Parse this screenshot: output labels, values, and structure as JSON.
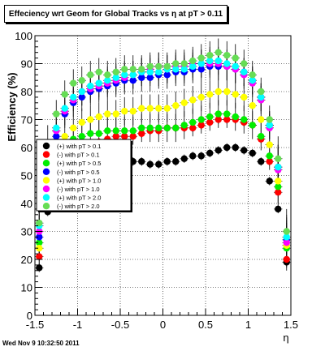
{
  "title": "Effeciency wrt Geom for Global Tracks vs    η at pT > 0.11",
  "footer": "Wed Nov  9 10:32:50 2011",
  "chart_data": {
    "type": "scatter",
    "title": "Effeciency wrt Geom for Global Tracks vs    η at pT > 0.11",
    "xlabel": "η",
    "ylabel": "Efficiency (%)",
    "xlim": [
      -1.5,
      1.5
    ],
    "ylim": [
      0,
      100
    ],
    "x_ticks": [
      "-1.5",
      "-1",
      "-0.5",
      "0",
      "0.5",
      "1",
      "1.5"
    ],
    "y_ticks": [
      "0",
      "10",
      "20",
      "30",
      "40",
      "50",
      "60",
      "70",
      "80",
      "90",
      "100"
    ],
    "grid": true,
    "legend_position": "center-left",
    "colors": [
      "#000000",
      "#ff0000",
      "#00ee00",
      "#0000ff",
      "#ffff00",
      "#ff00ff",
      "#00ffff",
      "#66dd55"
    ],
    "x": [
      -1.45,
      -1.35,
      -1.25,
      -1.15,
      -1.05,
      -0.95,
      -0.85,
      -0.75,
      -0.65,
      -0.55,
      -0.45,
      -0.35,
      -0.25,
      -0.15,
      -0.05,
      0.05,
      0.15,
      0.25,
      0.35,
      0.45,
      0.55,
      0.65,
      0.75,
      0.85,
      0.95,
      1.05,
      1.15,
      1.25,
      1.35,
      1.45
    ],
    "series": [
      {
        "name": "(+) with pT > 0.1",
        "values": [
          17,
          37,
          44,
          49,
          53,
          55,
          55,
          56,
          56,
          56,
          55,
          55,
          55,
          54,
          54,
          55,
          55,
          56,
          57,
          57,
          58,
          59,
          60,
          60,
          59,
          58,
          55,
          48,
          38,
          19
        ]
      },
      {
        "name": "(-) with pT > 0.1",
        "values": [
          21,
          42,
          50,
          55,
          58,
          60,
          61,
          62,
          63,
          64,
          64,
          64,
          65,
          66,
          66,
          67,
          67,
          67,
          67,
          68,
          69,
          70,
          70,
          70,
          69,
          68,
          63,
          55,
          44,
          20
        ]
      },
      {
        "name": "(+) with pT > 0.5",
        "values": [
          26,
          44,
          54,
          60,
          63,
          64,
          65,
          65,
          66,
          66,
          66,
          66,
          67,
          67,
          67,
          67,
          67,
          68,
          69,
          70,
          71,
          72,
          72,
          71,
          70,
          68,
          64,
          57,
          46,
          24
        ]
      },
      {
        "name": "(-) with pT > 0.5",
        "values": [
          28,
          52,
          64,
          72,
          76,
          78,
          80,
          81,
          82,
          83,
          84,
          84,
          85,
          85,
          86,
          86,
          87,
          87,
          88,
          88,
          89,
          89,
          89,
          88,
          87,
          84,
          78,
          68,
          53,
          27
        ]
      },
      {
        "name": "(+) with pT > 1.0",
        "values": [
          24,
          46,
          57,
          64,
          67,
          69,
          70,
          71,
          72,
          72,
          73,
          73,
          74,
          74,
          74,
          74,
          75,
          76,
          77,
          78,
          79,
          80,
          80,
          79,
          78,
          75,
          70,
          61,
          48,
          25
        ]
      },
      {
        "name": "(-) with pT > 1.0",
        "values": [
          30,
          54,
          66,
          73,
          77,
          80,
          81,
          82,
          83,
          84,
          85,
          86,
          87,
          88,
          89,
          88,
          89,
          89,
          90,
          90,
          90,
          90,
          89,
          88,
          86,
          83,
          77,
          67,
          52,
          26
        ]
      },
      {
        "name": "(+) with pT > 2.0",
        "values": [
          32,
          55,
          67,
          74,
          78,
          80,
          82,
          83,
          84,
          85,
          86,
          86,
          87,
          87,
          87,
          88,
          88,
          88,
          89,
          90,
          91,
          91,
          90,
          89,
          87,
          84,
          78,
          68,
          53,
          28
        ]
      },
      {
        "name": "(-) with pT > 2.0",
        "values": [
          33,
          60,
          72,
          79,
          83,
          84,
          86,
          87,
          86,
          87,
          88,
          88,
          88,
          89,
          89,
          89,
          90,
          90,
          91,
          92,
          93,
          94,
          93,
          92,
          90,
          86,
          80,
          70,
          56,
          30
        ]
      }
    ]
  }
}
